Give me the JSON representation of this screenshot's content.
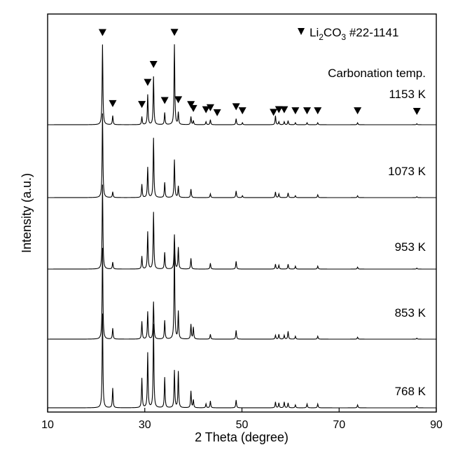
{
  "chart_data": {
    "type": "line",
    "title": "",
    "xlabel": "2 Theta (degree)",
    "ylabel": "Intensity (a.u.)",
    "xlim": [
      10,
      90
    ],
    "xticks": [
      10,
      30,
      50,
      70,
      90
    ],
    "yticks_shown": false,
    "legend": {
      "marker": "filled-down-triangle",
      "text": "Li2CO3  #22-1141",
      "placement": "top-right"
    },
    "annotation_header": "Carbonation temp.",
    "reference_markers_2theta": [
      21.3,
      23.4,
      29.4,
      30.6,
      31.8,
      34.1,
      36.1,
      36.9,
      39.5,
      40.0,
      42.6,
      43.5,
      44.9,
      48.8,
      50.1,
      56.5,
      57.6,
      58.7,
      61.0,
      63.4,
      65.6,
      73.8,
      86.0
    ],
    "series": [
      {
        "name": "1153 K",
        "peaks": [
          {
            "x": 21.3,
            "y": 0.8
          },
          {
            "x": 23.4,
            "y": 0.09
          },
          {
            "x": 29.4,
            "y": 0.08
          },
          {
            "x": 30.6,
            "y": 0.3
          },
          {
            "x": 31.8,
            "y": 0.48
          },
          {
            "x": 34.1,
            "y": 0.12
          },
          {
            "x": 36.1,
            "y": 0.8
          },
          {
            "x": 36.9,
            "y": 0.12
          },
          {
            "x": 39.5,
            "y": 0.08
          },
          {
            "x": 40.0,
            "y": 0.04
          },
          {
            "x": 42.6,
            "y": 0.03
          },
          {
            "x": 43.5,
            "y": 0.05
          },
          {
            "x": 48.8,
            "y": 0.06
          },
          {
            "x": 50.1,
            "y": 0.02
          },
          {
            "x": 56.9,
            "y": 0.09
          },
          {
            "x": 57.6,
            "y": 0.03
          },
          {
            "x": 58.7,
            "y": 0.03
          },
          {
            "x": 59.5,
            "y": 0.04
          },
          {
            "x": 61.0,
            "y": 0.02
          },
          {
            "x": 63.4,
            "y": 0.02
          },
          {
            "x": 65.6,
            "y": 0.02
          },
          {
            "x": 73.8,
            "y": 0.02
          },
          {
            "x": 86.0,
            "y": 0.01
          }
        ]
      },
      {
        "name": "1073 K",
        "peaks": [
          {
            "x": 21.3,
            "y": 0.89
          },
          {
            "x": 23.4,
            "y": 0.06
          },
          {
            "x": 29.4,
            "y": 0.14
          },
          {
            "x": 30.6,
            "y": 0.32
          },
          {
            "x": 31.8,
            "y": 0.63
          },
          {
            "x": 34.1,
            "y": 0.16
          },
          {
            "x": 36.1,
            "y": 0.4
          },
          {
            "x": 36.9,
            "y": 0.12
          },
          {
            "x": 39.5,
            "y": 0.09
          },
          {
            "x": 43.5,
            "y": 0.04
          },
          {
            "x": 48.8,
            "y": 0.07
          },
          {
            "x": 50.1,
            "y": 0.02
          },
          {
            "x": 56.9,
            "y": 0.06
          },
          {
            "x": 57.6,
            "y": 0.04
          },
          {
            "x": 59.5,
            "y": 0.05
          },
          {
            "x": 61.0,
            "y": 0.02
          },
          {
            "x": 65.6,
            "y": 0.03
          },
          {
            "x": 73.8,
            "y": 0.02
          },
          {
            "x": 86.0,
            "y": 0.01
          }
        ]
      },
      {
        "name": "953 K",
        "peaks": [
          {
            "x": 21.3,
            "y": 0.86
          },
          {
            "x": 23.4,
            "y": 0.07
          },
          {
            "x": 29.4,
            "y": 0.13
          },
          {
            "x": 30.6,
            "y": 0.38
          },
          {
            "x": 31.8,
            "y": 0.58
          },
          {
            "x": 34.1,
            "y": 0.17
          },
          {
            "x": 36.1,
            "y": 0.35
          },
          {
            "x": 36.9,
            "y": 0.22
          },
          {
            "x": 39.5,
            "y": 0.11
          },
          {
            "x": 43.5,
            "y": 0.06
          },
          {
            "x": 48.8,
            "y": 0.08
          },
          {
            "x": 56.9,
            "y": 0.05
          },
          {
            "x": 57.6,
            "y": 0.04
          },
          {
            "x": 59.5,
            "y": 0.05
          },
          {
            "x": 61.0,
            "y": 0.03
          },
          {
            "x": 65.6,
            "y": 0.03
          },
          {
            "x": 73.8,
            "y": 0.02
          },
          {
            "x": 86.0,
            "y": 0.01
          }
        ]
      },
      {
        "name": "853 K",
        "peaks": [
          {
            "x": 21.3,
            "y": 0.93
          },
          {
            "x": 23.4,
            "y": 0.11
          },
          {
            "x": 29.4,
            "y": 0.18
          },
          {
            "x": 30.6,
            "y": 0.28
          },
          {
            "x": 31.8,
            "y": 0.38
          },
          {
            "x": 34.1,
            "y": 0.19
          },
          {
            "x": 36.1,
            "y": 0.93
          },
          {
            "x": 36.9,
            "y": 0.28
          },
          {
            "x": 39.5,
            "y": 0.15
          },
          {
            "x": 40.0,
            "y": 0.12
          },
          {
            "x": 43.5,
            "y": 0.05
          },
          {
            "x": 48.8,
            "y": 0.09
          },
          {
            "x": 56.9,
            "y": 0.04
          },
          {
            "x": 57.6,
            "y": 0.05
          },
          {
            "x": 58.7,
            "y": 0.04
          },
          {
            "x": 59.5,
            "y": 0.08
          },
          {
            "x": 61.0,
            "y": 0.03
          },
          {
            "x": 65.6,
            "y": 0.03
          },
          {
            "x": 73.8,
            "y": 0.02
          },
          {
            "x": 86.0,
            "y": 0.01
          }
        ]
      },
      {
        "name": "768 K",
        "peaks": [
          {
            "x": 21.3,
            "y": 0.96
          },
          {
            "x": 23.4,
            "y": 0.2
          },
          {
            "x": 29.4,
            "y": 0.3
          },
          {
            "x": 30.6,
            "y": 0.56
          },
          {
            "x": 31.8,
            "y": 0.85
          },
          {
            "x": 34.1,
            "y": 0.31
          },
          {
            "x": 36.1,
            "y": 0.38
          },
          {
            "x": 36.9,
            "y": 0.37
          },
          {
            "x": 39.5,
            "y": 0.17
          },
          {
            "x": 40.0,
            "y": 0.08
          },
          {
            "x": 42.6,
            "y": 0.04
          },
          {
            "x": 43.5,
            "y": 0.07
          },
          {
            "x": 48.8,
            "y": 0.08
          },
          {
            "x": 56.9,
            "y": 0.06
          },
          {
            "x": 57.6,
            "y": 0.05
          },
          {
            "x": 58.7,
            "y": 0.06
          },
          {
            "x": 59.5,
            "y": 0.05
          },
          {
            "x": 61.0,
            "y": 0.03
          },
          {
            "x": 63.4,
            "y": 0.04
          },
          {
            "x": 65.6,
            "y": 0.04
          },
          {
            "x": 73.8,
            "y": 0.03
          },
          {
            "x": 86.0,
            "y": 0.02
          }
        ]
      }
    ]
  }
}
